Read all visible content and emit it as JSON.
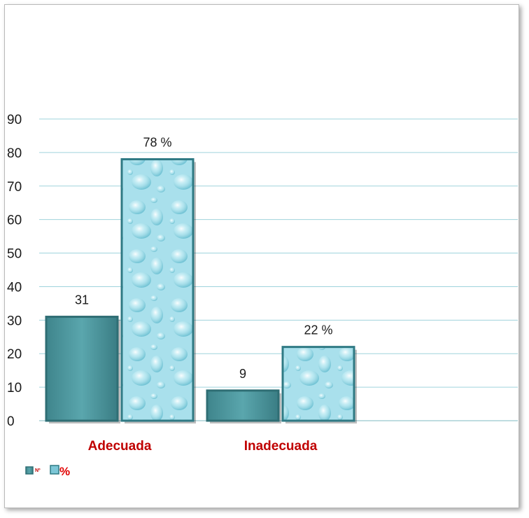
{
  "chart_data": {
    "type": "bar",
    "categories": [
      "Adecuada",
      "Inadecuada"
    ],
    "series": [
      {
        "name": "Nº",
        "values": [
          31,
          9
        ],
        "labels": [
          "31",
          "9"
        ],
        "color": "#4a969e"
      },
      {
        "name": "%",
        "values": [
          78,
          22
        ],
        "labels": [
          "78 %",
          "22 %"
        ],
        "color": "#a9e0ec"
      }
    ],
    "ylim": [
      0,
      90
    ],
    "yticks": [
      0,
      10,
      20,
      30,
      40,
      50,
      60,
      70,
      80,
      90
    ],
    "grid": true,
    "legend": "bottom-left",
    "category_label_color": "#c00000",
    "gridline_color": "#9fd3dc"
  }
}
